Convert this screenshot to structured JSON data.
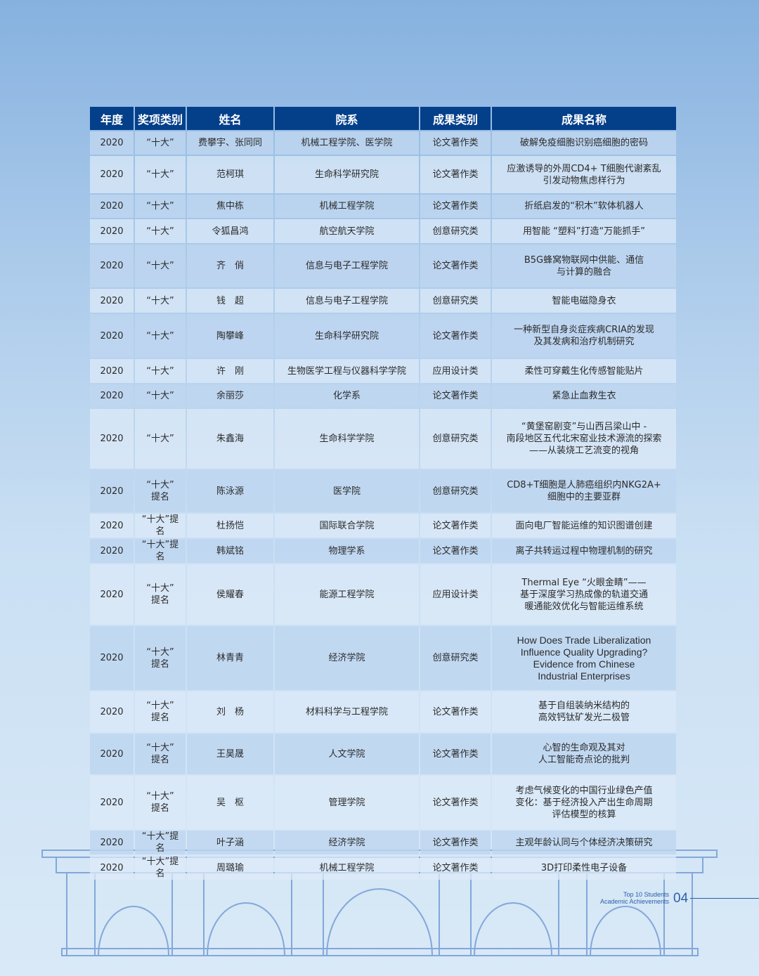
{
  "table": {
    "headers": [
      "年度",
      "奖项类别",
      "姓名",
      "院系",
      "成果类别",
      "成果名称"
    ],
    "rows": [
      [
        "2020",
        "“十大”",
        "费攀宇、张同同",
        "机械工程学院、医学院",
        "论文著作类",
        "破解免疫细胞识别癌细胞的密码"
      ],
      [
        "2020",
        "“十大”",
        "范柯琪",
        "生命科学研究院",
        "论文著作类",
        "应激诱导的外周CD4+ T细胞代谢紊乱\n引发动物焦虑样行为"
      ],
      [
        "2020",
        "“十大”",
        "焦中栋",
        "机械工程学院",
        "论文著作类",
        "折纸启发的“积木”软体机器人"
      ],
      [
        "2020",
        "“十大”",
        "令狐昌鸿",
        "航空航天学院",
        "创意研究类",
        "用智能 “塑料”打造“万能抓手”"
      ],
      [
        "2020",
        "“十大”",
        "齐　俏",
        "信息与电子工程学院",
        "论文著作类",
        "B5G蜂窝物联网中供能、通信\n与计算的融合"
      ],
      [
        "2020",
        "“十大”",
        "钱　超",
        "信息与电子工程学院",
        "创意研究类",
        "智能电磁隐身衣"
      ],
      [
        "2020",
        "“十大”",
        "陶攀峰",
        "生命科学研究院",
        "论文著作类",
        "一种新型自身炎症疾病CRIA的发现\n及其发病和治疗机制研究"
      ],
      [
        "2020",
        "“十大”",
        "许　刚",
        "生物医学工程与仪器科学学院",
        "应用设计类",
        "柔性可穿戴生化传感智能贴片"
      ],
      [
        "2020",
        "“十大”",
        "余丽莎",
        "化学系",
        "论文著作类",
        "紧急止血救生衣"
      ],
      [
        "2020",
        "“十大”",
        "朱鑫海",
        "生命科学学院",
        "创意研究类",
        "“黄堡窑剧变”与山西吕梁山中 -\n南段地区五代北宋窑业技术源流的探索\n——从装烧工艺流变的视角"
      ],
      [
        "2020",
        "“十大”\n提名",
        "陈泳源",
        "医学院",
        "创意研究类",
        "CD8+T细胞是人肺癌组织内NKG2A+\n细胞中的主要亚群"
      ],
      [
        "2020",
        "“十大”提名",
        "杜扬恺",
        "国际联合学院",
        "论文著作类",
        "面向电厂智能运维的知识图谱创建"
      ],
      [
        "2020",
        "“十大”提名",
        "韩斌铭",
        "物理学系",
        "论文著作类",
        "离子共转运过程中物理机制的研究"
      ],
      [
        "2020",
        "“十大”\n提名",
        "侯耀春",
        "能源工程学院",
        "应用设计类",
        "Thermal Eye “火眼金睛”——\n基于深度学习热成像的轨道交通\n暖通能效优化与智能运维系统"
      ],
      [
        "2020",
        "“十大”\n提名",
        "林青青",
        "经济学院",
        "创意研究类",
        "How Does Trade Liberalization\nInfluence Quality Upgrading?\nEvidence from Chinese\nIndustrial Enterprises"
      ],
      [
        "2020",
        "“十大”\n提名",
        "刘　杨",
        "材料科学与工程学院",
        "论文著作类",
        "基于自组装纳米结构的\n高效钙钛矿发光二极管"
      ],
      [
        "2020",
        "“十大”\n提名",
        "王昊晟",
        "人文学院",
        "论文著作类",
        "心智的生命观及其对\n人工智能奇点论的批判"
      ],
      [
        "2020",
        "“十大”\n提名",
        "吴　枢",
        "管理学院",
        "论文著作类",
        "考虑气候变化的中国行业绿色产值\n变化：基于经济投入产出生命周期\n评估模型的核算"
      ],
      [
        "2020",
        "“十大”提名",
        "叶子涵",
        "经济学院",
        "论文著作类",
        "主观年龄认同与个体经济决策研究"
      ],
      [
        "2020",
        "“十大”提名",
        "周璐瑜",
        "机械工程学院",
        "论文著作类",
        "3D打印柔性电子设备"
      ]
    ]
  },
  "footer": {
    "line1": "Top 10 Students",
    "line2": "Academic Achievements",
    "page": "04"
  },
  "colors": {
    "header": "#043f8a",
    "accent": "#2c5fa8"
  }
}
